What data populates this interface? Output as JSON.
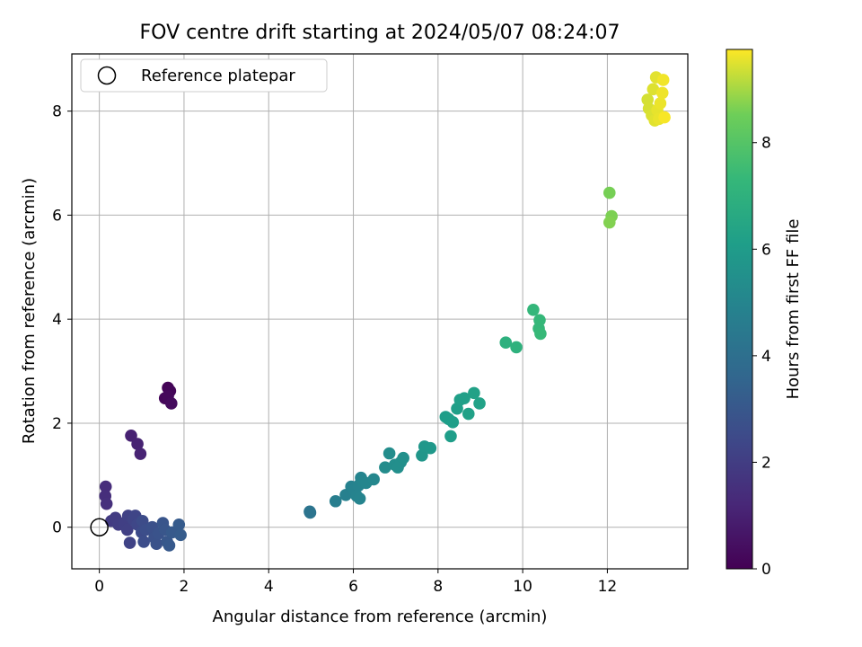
{
  "chart_data": {
    "type": "scatter",
    "title": "FOV centre drift starting at 2024/05/07 08:24:07",
    "xlabel": "Angular distance from reference (arcmin)",
    "ylabel": "Rotation from reference (arcmin)",
    "xlim": [
      -0.65,
      13.9
    ],
    "ylim": [
      -0.8,
      9.1
    ],
    "x_ticks": [
      0,
      2,
      4,
      6,
      8,
      10,
      12
    ],
    "y_ticks": [
      0,
      2,
      4,
      6,
      8
    ],
    "x_tick_labels": [
      "0",
      "2",
      "4",
      "6",
      "8",
      "10",
      "12"
    ],
    "y_tick_labels": [
      "0",
      "2",
      "4",
      "6",
      "8"
    ],
    "grid": true,
    "legend": {
      "placement": "top-left",
      "entries": [
        "Reference platepar"
      ]
    },
    "reference_point": {
      "x": 0,
      "y": 0
    },
    "colorbar": {
      "label": "Hours from first FF file",
      "range": [
        0,
        9.75
      ],
      "ticks": [
        0,
        2,
        4,
        6,
        8
      ],
      "tick_labels": [
        "0",
        "2",
        "4",
        "6",
        "8"
      ],
      "colormap": "viridis"
    },
    "points": [
      {
        "x": 1.62,
        "y": 2.68,
        "t": 0.1
      },
      {
        "x": 1.67,
        "y": 2.62,
        "t": 0.15
      },
      {
        "x": 1.55,
        "y": 2.48,
        "t": 0.2
      },
      {
        "x": 1.62,
        "y": 2.52,
        "t": 0.25
      },
      {
        "x": 1.7,
        "y": 2.38,
        "t": 0.3
      },
      {
        "x": 0.75,
        "y": 1.76,
        "t": 1.0
      },
      {
        "x": 0.9,
        "y": 1.6,
        "t": 1.05
      },
      {
        "x": 0.97,
        "y": 1.41,
        "t": 1.1
      },
      {
        "x": 0.15,
        "y": 0.78,
        "t": 1.4
      },
      {
        "x": 0.14,
        "y": 0.6,
        "t": 1.45
      },
      {
        "x": 0.17,
        "y": 0.45,
        "t": 1.5
      },
      {
        "x": 0.28,
        "y": 0.12,
        "t": 1.9
      },
      {
        "x": 0.38,
        "y": 0.18,
        "t": 1.95
      },
      {
        "x": 0.45,
        "y": 0.05,
        "t": 2.0
      },
      {
        "x": 0.58,
        "y": 0.08,
        "t": 2.05
      },
      {
        "x": 0.66,
        "y": -0.05,
        "t": 2.1
      },
      {
        "x": 0.68,
        "y": 0.22,
        "t": 2.15
      },
      {
        "x": 0.72,
        "y": -0.3,
        "t": 2.2
      },
      {
        "x": 0.8,
        "y": 0.15,
        "t": 2.25
      },
      {
        "x": 0.85,
        "y": 0.22,
        "t": 2.3
      },
      {
        "x": 0.9,
        "y": 0.05,
        "t": 2.35
      },
      {
        "x": 1.0,
        "y": -0.1,
        "t": 2.5
      },
      {
        "x": 1.02,
        "y": 0.12,
        "t": 2.55
      },
      {
        "x": 1.05,
        "y": -0.28,
        "t": 2.6
      },
      {
        "x": 1.1,
        "y": -0.05,
        "t": 2.65
      },
      {
        "x": 1.25,
        "y": 0.0,
        "t": 2.7
      },
      {
        "x": 1.3,
        "y": -0.2,
        "t": 2.75
      },
      {
        "x": 1.35,
        "y": -0.32,
        "t": 2.8
      },
      {
        "x": 1.4,
        "y": -0.12,
        "t": 2.85
      },
      {
        "x": 1.5,
        "y": 0.08,
        "t": 2.9
      },
      {
        "x": 1.55,
        "y": -0.05,
        "t": 2.95
      },
      {
        "x": 1.6,
        "y": -0.28,
        "t": 3.0
      },
      {
        "x": 1.65,
        "y": -0.35,
        "t": 3.05
      },
      {
        "x": 1.72,
        "y": -0.1,
        "t": 3.1
      },
      {
        "x": 1.88,
        "y": 0.05,
        "t": 3.15
      },
      {
        "x": 1.92,
        "y": -0.15,
        "t": 3.2
      },
      {
        "x": 4.98,
        "y": 0.28,
        "t": 4.2
      },
      {
        "x": 4.97,
        "y": 0.3,
        "t": 4.22
      },
      {
        "x": 5.58,
        "y": 0.5,
        "t": 4.7
      },
      {
        "x": 5.82,
        "y": 0.62,
        "t": 4.8
      },
      {
        "x": 5.95,
        "y": 0.78,
        "t": 4.85
      },
      {
        "x": 6.02,
        "y": 0.72,
        "t": 4.88
      },
      {
        "x": 6.08,
        "y": 0.6,
        "t": 4.9
      },
      {
        "x": 6.12,
        "y": 0.8,
        "t": 4.92
      },
      {
        "x": 6.15,
        "y": 0.55,
        "t": 4.95
      },
      {
        "x": 6.18,
        "y": 0.95,
        "t": 4.98
      },
      {
        "x": 6.22,
        "y": 0.88,
        "t": 5.0
      },
      {
        "x": 6.3,
        "y": 0.85,
        "t": 5.05
      },
      {
        "x": 6.48,
        "y": 0.92,
        "t": 5.1
      },
      {
        "x": 6.75,
        "y": 1.15,
        "t": 5.3
      },
      {
        "x": 6.85,
        "y": 1.42,
        "t": 5.35
      },
      {
        "x": 6.98,
        "y": 1.2,
        "t": 5.4
      },
      {
        "x": 7.05,
        "y": 1.15,
        "t": 5.42
      },
      {
        "x": 7.12,
        "y": 1.25,
        "t": 5.45
      },
      {
        "x": 7.18,
        "y": 1.33,
        "t": 5.5
      },
      {
        "x": 7.62,
        "y": 1.38,
        "t": 5.75
      },
      {
        "x": 7.68,
        "y": 1.55,
        "t": 5.8
      },
      {
        "x": 7.82,
        "y": 1.52,
        "t": 5.85
      },
      {
        "x": 8.18,
        "y": 2.12,
        "t": 6.05
      },
      {
        "x": 8.25,
        "y": 2.08,
        "t": 6.08
      },
      {
        "x": 8.3,
        "y": 1.75,
        "t": 6.1
      },
      {
        "x": 8.35,
        "y": 2.02,
        "t": 6.12
      },
      {
        "x": 8.45,
        "y": 2.28,
        "t": 6.15
      },
      {
        "x": 8.52,
        "y": 2.45,
        "t": 6.18
      },
      {
        "x": 8.62,
        "y": 2.48,
        "t": 6.2
      },
      {
        "x": 8.72,
        "y": 2.18,
        "t": 6.22
      },
      {
        "x": 8.85,
        "y": 2.58,
        "t": 6.25
      },
      {
        "x": 8.98,
        "y": 2.38,
        "t": 6.28
      },
      {
        "x": 9.6,
        "y": 3.55,
        "t": 6.95
      },
      {
        "x": 9.85,
        "y": 3.46,
        "t": 7.0
      },
      {
        "x": 10.25,
        "y": 4.18,
        "t": 7.25
      },
      {
        "x": 10.4,
        "y": 3.98,
        "t": 7.3
      },
      {
        "x": 10.38,
        "y": 3.82,
        "t": 7.32
      },
      {
        "x": 10.42,
        "y": 3.72,
        "t": 7.35
      },
      {
        "x": 12.05,
        "y": 6.43,
        "t": 8.6
      },
      {
        "x": 12.1,
        "y": 5.98,
        "t": 8.65
      },
      {
        "x": 12.05,
        "y": 5.86,
        "t": 8.7
      },
      {
        "x": 12.95,
        "y": 8.22,
        "t": 9.4
      },
      {
        "x": 12.98,
        "y": 8.05,
        "t": 9.42
      },
      {
        "x": 13.05,
        "y": 7.92,
        "t": 9.45
      },
      {
        "x": 13.08,
        "y": 8.42,
        "t": 9.48
      },
      {
        "x": 13.12,
        "y": 7.82,
        "t": 9.5
      },
      {
        "x": 13.15,
        "y": 8.65,
        "t": 9.52
      },
      {
        "x": 13.18,
        "y": 8.02,
        "t": 9.55
      },
      {
        "x": 13.22,
        "y": 7.85,
        "t": 9.58
      },
      {
        "x": 13.25,
        "y": 8.15,
        "t": 9.6
      },
      {
        "x": 13.3,
        "y": 8.35,
        "t": 9.62
      },
      {
        "x": 13.32,
        "y": 8.6,
        "t": 9.65
      },
      {
        "x": 13.35,
        "y": 7.88,
        "t": 9.7
      }
    ]
  }
}
